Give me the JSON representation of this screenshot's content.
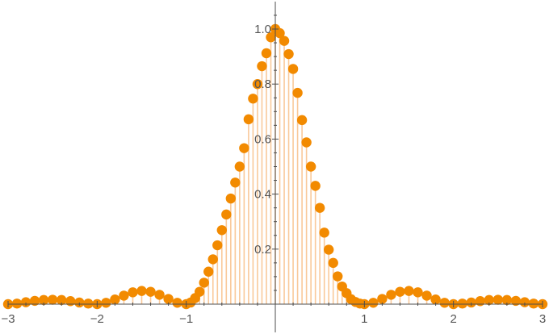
{
  "chart_data": {
    "type": "scatter",
    "title": "",
    "xlabel": "",
    "ylabel": "",
    "xlim": [
      -3,
      3
    ],
    "ylim": [
      -0.02,
      1.1
    ],
    "x_ticks": [
      -3,
      -2,
      -1,
      1,
      2,
      3
    ],
    "x_tick_labels": [
      "−3",
      "−2",
      "−1",
      "1",
      "2",
      "3"
    ],
    "y_ticks": [
      0.2,
      0.4,
      0.6,
      0.8,
      1.0
    ],
    "y_tick_labels": [
      "0.2",
      "0.4",
      "0.6",
      "0.8",
      "1.0"
    ],
    "grid": false,
    "legend": "none",
    "colors": {
      "points": "#f28a00",
      "stems": "#f9c99a",
      "axis": "#4d4d4d",
      "tick_text": "#555555"
    },
    "series": [
      {
        "x": [
          -3.0,
          -2.9,
          -2.8,
          -2.7,
          -2.6,
          -2.5,
          -2.4,
          -2.3,
          -2.2,
          -2.1,
          -2.0,
          -1.9,
          -1.8,
          -1.7,
          -1.6,
          -1.5,
          -1.4,
          -1.3,
          -1.2,
          -1.1,
          -1.0,
          -0.95,
          -0.9,
          -0.85,
          -0.8,
          -0.75,
          -0.7,
          -0.65,
          -0.6,
          -0.55,
          -0.5,
          -0.45,
          -0.4,
          -0.35,
          -0.3,
          -0.25,
          -0.2,
          -0.15,
          -0.1,
          -0.05,
          0.0,
          0.05,
          0.1,
          0.15,
          0.2,
          0.25,
          0.3,
          0.35,
          0.4,
          0.45,
          0.5,
          0.55,
          0.6,
          0.65,
          0.7,
          0.75,
          0.8,
          0.85,
          0.9,
          0.95,
          1.0,
          1.1,
          1.2,
          1.3,
          1.4,
          1.5,
          1.6,
          1.7,
          1.8,
          1.9,
          2.0,
          2.1,
          2.2,
          2.3,
          2.4,
          2.5,
          2.6,
          2.7,
          2.8,
          2.9,
          3.0
        ],
        "y": [
          0.0,
          0.002,
          0.007,
          0.012,
          0.015,
          0.016,
          0.015,
          0.011,
          0.006,
          0.002,
          0.0,
          0.005,
          0.017,
          0.031,
          0.043,
          0.048,
          0.045,
          0.034,
          0.019,
          0.005,
          0.0,
          0.006,
          0.022,
          0.045,
          0.078,
          0.118,
          0.163,
          0.214,
          0.269,
          0.326,
          0.384,
          0.442,
          0.5,
          0.567,
          0.672,
          0.747,
          0.8,
          0.865,
          0.912,
          0.97,
          1.0,
          0.985,
          0.957,
          0.909,
          0.855,
          0.768,
          0.669,
          0.588,
          0.5,
          0.43,
          0.35,
          0.26,
          0.198,
          0.15,
          0.101,
          0.064,
          0.04,
          0.018,
          0.008,
          0.002,
          0.0,
          0.005,
          0.019,
          0.034,
          0.045,
          0.048,
          0.043,
          0.031,
          0.017,
          0.005,
          0.0,
          0.002,
          0.006,
          0.011,
          0.015,
          0.016,
          0.015,
          0.012,
          0.007,
          0.002,
          0.0
        ]
      }
    ]
  }
}
